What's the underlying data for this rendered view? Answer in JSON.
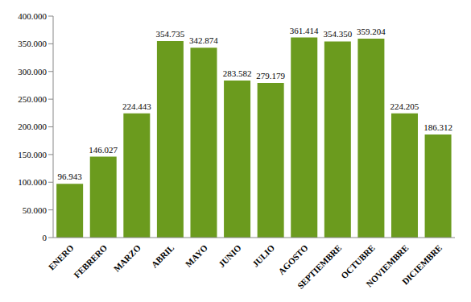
{
  "chart_data": {
    "type": "bar",
    "categories": [
      "ENERO",
      "FEBRERO",
      "MARZO",
      "ABRIL",
      "MAYO",
      "JUNIO",
      "JULIO",
      "AGOSTO",
      "SEPTIEMBRE",
      "OCTUBRE",
      "NOVIEMBRE",
      "DICIEMBRE"
    ],
    "values": [
      96943,
      146027,
      224443,
      354735,
      342874,
      283582,
      279179,
      361414,
      354350,
      359204,
      224205,
      186312
    ],
    "value_labels": [
      "96.943",
      "146.027",
      "224.443",
      "354.735",
      "342.874",
      "283.582",
      "279.179",
      "361.414",
      "354.350",
      "359.204",
      "224.205",
      "186.312"
    ],
    "color": "#6b9b1e",
    "ylim": [
      0,
      400000
    ],
    "yticks": [
      0,
      {
        "value": 50000,
        "label": "50.000"
      },
      {
        "value": 100000,
        "label": "100.000"
      },
      {
        "value": 150000,
        "label": "150.000"
      },
      {
        "value": 200000,
        "label": "200.000"
      },
      {
        "value": 250000,
        "label": "250.000"
      },
      {
        "value": 300000,
        "label": "300.000"
      },
      {
        "value": 350000,
        "label": "350.000"
      },
      {
        "value": 400000,
        "label": "400.000"
      }
    ],
    "grid": false,
    "data_labels": true
  }
}
